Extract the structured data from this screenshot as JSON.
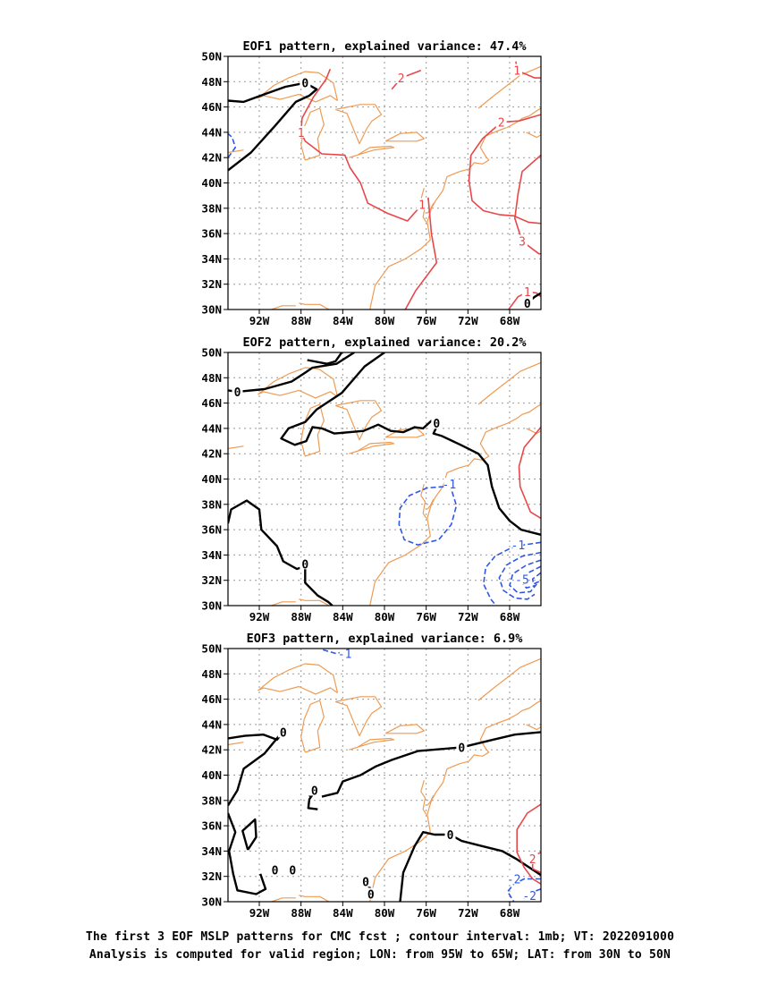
{
  "chart_data": [
    {
      "type": "contour-map",
      "title": "EOF1 pattern, explained variance: 47.4%",
      "lon_range": [
        -95,
        -65
      ],
      "lat_range": [
        30,
        50
      ],
      "x_ticks": [
        "92W",
        "88W",
        "84W",
        "80W",
        "76W",
        "72W",
        "68W"
      ],
      "y_ticks": [
        "30N",
        "32N",
        "34N",
        "36N",
        "38N",
        "40N",
        "42N",
        "44N",
        "46N",
        "48N",
        "50N"
      ],
      "grid": true,
      "contour_labels": [
        {
          "text": "2",
          "lon": -78.4,
          "lat": 48.3,
          "sign": "positive"
        },
        {
          "text": "1",
          "lon": -67.3,
          "lat": 48.9,
          "sign": "positive"
        },
        {
          "text": "0",
          "lon": -87.6,
          "lat": 47.9,
          "sign": "zero"
        },
        {
          "text": "1",
          "lon": -88.0,
          "lat": 44.0,
          "sign": "positive"
        },
        {
          "text": "2",
          "lon": -68.8,
          "lat": 44.8,
          "sign": "positive"
        },
        {
          "text": "1",
          "lon": -76.4,
          "lat": 38.3,
          "sign": "positive"
        },
        {
          "text": "3",
          "lon": -66.8,
          "lat": 35.4,
          "sign": "positive"
        },
        {
          "text": "1",
          "lon": -66.3,
          "lat": 31.4,
          "sign": "positive"
        },
        {
          "text": "0",
          "lon": -66.3,
          "lat": 30.5,
          "sign": "zero"
        }
      ]
    },
    {
      "type": "contour-map",
      "title": "EOF2 pattern, explained variance: 20.2%",
      "lon_range": [
        -95,
        -65
      ],
      "lat_range": [
        30,
        50
      ],
      "x_ticks": [
        "92W",
        "88W",
        "84W",
        "80W",
        "76W",
        "72W",
        "68W"
      ],
      "y_ticks": [
        "30N",
        "32N",
        "34N",
        "36N",
        "38N",
        "40N",
        "42N",
        "44N",
        "46N",
        "48N",
        "50N"
      ],
      "grid": true,
      "contour_labels": [
        {
          "text": "0",
          "lon": -94.1,
          "lat": 46.9,
          "sign": "zero"
        },
        {
          "text": "0",
          "lon": -75.0,
          "lat": 44.4,
          "sign": "zero"
        },
        {
          "text": "-1",
          "lon": -73.8,
          "lat": 39.6,
          "sign": "negative"
        },
        {
          "text": "0",
          "lon": -87.6,
          "lat": 33.3,
          "sign": "zero"
        },
        {
          "text": "-1",
          "lon": -67.2,
          "lat": 34.8,
          "sign": "negative"
        },
        {
          "text": "-5",
          "lon": -66.8,
          "lat": 32.1,
          "sign": "negative"
        }
      ]
    },
    {
      "type": "contour-map",
      "title": "EOF3 pattern, explained variance: 6.9%",
      "lon_range": [
        -95,
        -65
      ],
      "lat_range": [
        30,
        50
      ],
      "x_ticks": [
        "92W",
        "88W",
        "84W",
        "80W",
        "76W",
        "72W",
        "68W"
      ],
      "y_ticks": [
        "30N",
        "32N",
        "34N",
        "36N",
        "38N",
        "40N",
        "42N",
        "44N",
        "46N",
        "48N",
        "50N"
      ],
      "grid": true,
      "contour_labels": [
        {
          "text": "-1",
          "lon": -83.8,
          "lat": 49.6,
          "sign": "negative"
        },
        {
          "text": "0",
          "lon": -89.7,
          "lat": 43.4,
          "sign": "zero"
        },
        {
          "text": "0",
          "lon": -72.6,
          "lat": 42.2,
          "sign": "zero"
        },
        {
          "text": "0",
          "lon": -86.7,
          "lat": 38.8,
          "sign": "zero"
        },
        {
          "text": "0",
          "lon": -73.7,
          "lat": 35.3,
          "sign": "zero"
        },
        {
          "text": "0",
          "lon": -90.5,
          "lat": 32.5,
          "sign": "zero"
        },
        {
          "text": "0",
          "lon": -88.8,
          "lat": 32.5,
          "sign": "zero"
        },
        {
          "text": "0",
          "lon": -81.8,
          "lat": 31.6,
          "sign": "zero"
        },
        {
          "text": "0",
          "lon": -81.3,
          "lat": 30.6,
          "sign": "zero"
        },
        {
          "text": "-2",
          "lon": -67.6,
          "lat": 31.8,
          "sign": "negative"
        },
        {
          "text": "-2",
          "lon": -66.1,
          "lat": 30.5,
          "sign": "negative"
        },
        {
          "text": "2",
          "lon": -65.8,
          "lat": 33.4,
          "sign": "positive"
        }
      ]
    }
  ],
  "caption": {
    "line1": "The first 3 EOF MSLP patterns for CMC fcst ; contour interval: 1mb; VT: 2022091000",
    "line2": "Analysis is computed for valid region; LON: from 95W to 65W; LAT: from 30N to 50N"
  },
  "colors": {
    "positive": "#e8474a",
    "negative": "#2f57e6",
    "zero": "#000000",
    "coast": "#ef9b53",
    "grid": "#9a9a9a"
  }
}
